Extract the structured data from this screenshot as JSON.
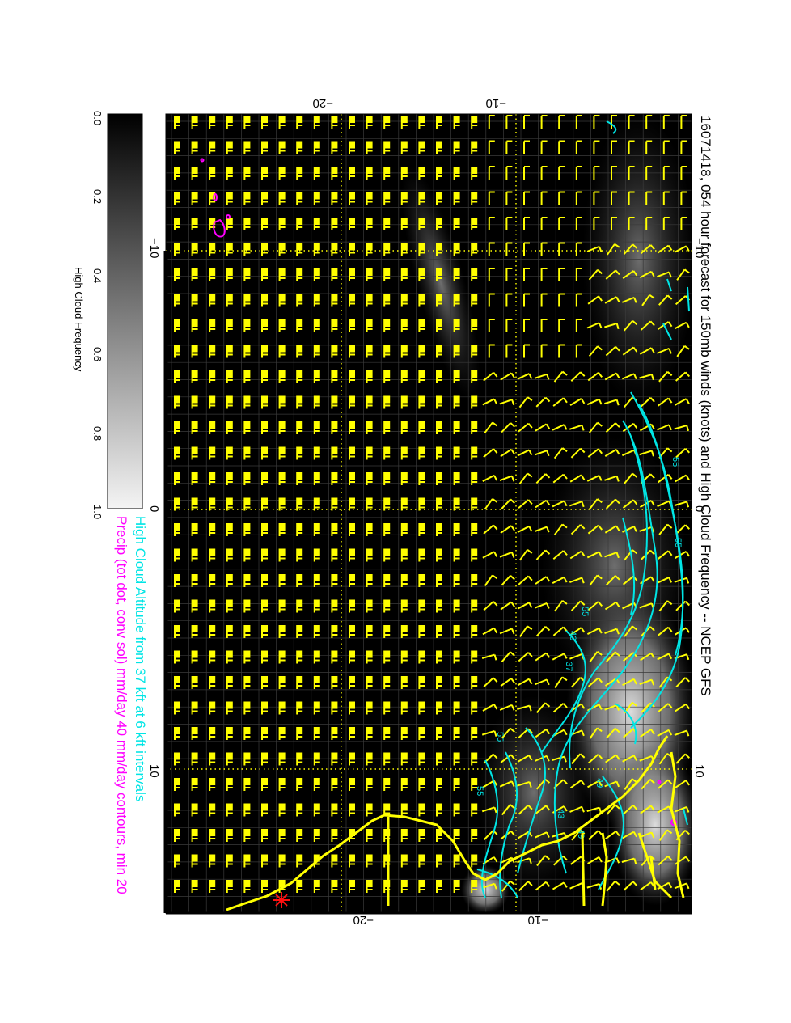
{
  "title": "16071418, 054 hour forecast for 150mb winds (knots) and High Cloud Frequency -- NCEP GFS",
  "legend_cyan": "High Cloud Altitude from 37 kft at 6 kft intervals",
  "legend_magenta": "Precip (tot dot, conv sol) mm/day 40 mm/day contours, min 20",
  "colorbar": {
    "label": "High Cloud Frequency",
    "ticks": [
      "0.0",
      "0.2",
      "0.4",
      "0.6",
      "0.8",
      "1.0"
    ]
  },
  "axes": {
    "top_ticks": [
      "−20",
      "−10"
    ],
    "bottom_ticks": [
      "−20",
      "−10"
    ],
    "left_ticks": [
      "−10",
      "0",
      "10"
    ],
    "right_ticks": [
      "−10",
      "0",
      "10"
    ]
  },
  "contour_labels": [
    "55",
    "55",
    "55",
    "43",
    "37",
    "55",
    "49",
    "43",
    "55",
    "49"
  ],
  "colors": {
    "background": "#000000",
    "barbs": "#ffff00",
    "contours": "#00e5e5",
    "precip": "#ff00ff",
    "coastline": "#ffff00",
    "marker": "#ff0000"
  }
}
